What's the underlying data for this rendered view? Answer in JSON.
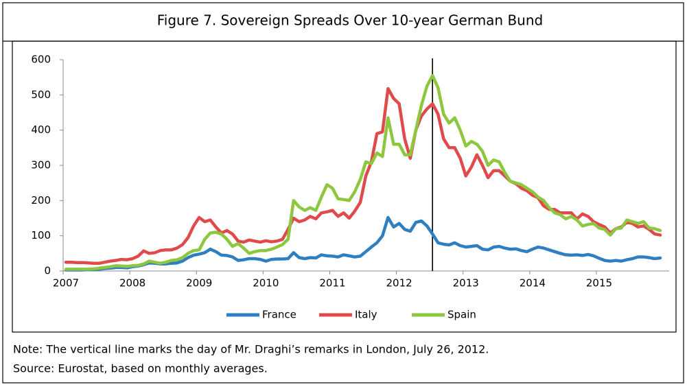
{
  "chart_data": {
    "type": "line",
    "title": "Figure 7. Sovereign Spreads Over 10-year German Bund",
    "categories": [
      "2007",
      null,
      null,
      null,
      null,
      null,
      null,
      null,
      null,
      null,
      null,
      null,
      "2008",
      null,
      null,
      null,
      null,
      null,
      null,
      null,
      null,
      null,
      null,
      null,
      "2009",
      null,
      null,
      null,
      null,
      null,
      null,
      null,
      null,
      null,
      null,
      null,
      "2010",
      null,
      null,
      null,
      null,
      null,
      null,
      null,
      null,
      null,
      null,
      null,
      "2011",
      null,
      null,
      null,
      null,
      null,
      null,
      null,
      null,
      null,
      null,
      null,
      "2012",
      null,
      null,
      null,
      null,
      null,
      null,
      null,
      null,
      null,
      null,
      null,
      "2013",
      null,
      null,
      null,
      null,
      null,
      null,
      null,
      null,
      null,
      null,
      null,
      "2014",
      null,
      null,
      null,
      null,
      null,
      null,
      null,
      null,
      null,
      null,
      null,
      "2015",
      null,
      null,
      null,
      null,
      null,
      null,
      null,
      null,
      null,
      null,
      null
    ],
    "series": [
      {
        "name": "France",
        "color": "#2e7fc1",
        "values": [
          3,
          3,
          3,
          3,
          4,
          4,
          5,
          7,
          8,
          10,
          10,
          9,
          12,
          14,
          18,
          23,
          22,
          20,
          20,
          22,
          23,
          28,
          38,
          45,
          48,
          52,
          62,
          55,
          45,
          44,
          40,
          30,
          32,
          35,
          35,
          33,
          28,
          33,
          34,
          34,
          35,
          52,
          38,
          35,
          38,
          37,
          46,
          43,
          42,
          40,
          46,
          43,
          40,
          42,
          55,
          68,
          80,
          100,
          152,
          125,
          135,
          118,
          113,
          138,
          142,
          128,
          105,
          80,
          76,
          74,
          80,
          72,
          68,
          70,
          72,
          62,
          60,
          68,
          70,
          65,
          62,
          63,
          58,
          55,
          62,
          68,
          65,
          60,
          55,
          50,
          46,
          45,
          46,
          44,
          47,
          43,
          36,
          30,
          28,
          30,
          28,
          32,
          35,
          40,
          40,
          38,
          35,
          37
        ]
      },
      {
        "name": "Italy",
        "color": "#e04a4a",
        "values": [
          25,
          25,
          24,
          24,
          23,
          22,
          22,
          25,
          28,
          30,
          33,
          32,
          35,
          42,
          57,
          50,
          52,
          58,
          60,
          60,
          65,
          75,
          95,
          128,
          152,
          140,
          145,
          125,
          108,
          115,
          105,
          85,
          82,
          88,
          85,
          82,
          86,
          83,
          85,
          90,
          118,
          150,
          140,
          145,
          155,
          148,
          165,
          168,
          172,
          155,
          165,
          150,
          170,
          195,
          270,
          310,
          390,
          395,
          518,
          490,
          475,
          375,
          320,
          400,
          440,
          460,
          475,
          445,
          375,
          350,
          350,
          320,
          270,
          295,
          330,
          300,
          265,
          285,
          285,
          270,
          255,
          248,
          235,
          228,
          215,
          208,
          185,
          175,
          175,
          165,
          165,
          165,
          148,
          162,
          155,
          140,
          132,
          125,
          108,
          120,
          125,
          138,
          135,
          125,
          128,
          118,
          105,
          102
        ]
      },
      {
        "name": "Spain",
        "color": "#8dc63f",
        "values": [
          5,
          5,
          5,
          5,
          5,
          6,
          8,
          10,
          12,
          15,
          14,
          13,
          15,
          16,
          20,
          28,
          25,
          22,
          25,
          30,
          32,
          38,
          50,
          58,
          60,
          90,
          108,
          110,
          105,
          90,
          70,
          78,
          65,
          50,
          55,
          58,
          58,
          62,
          68,
          75,
          90,
          200,
          182,
          172,
          180,
          172,
          210,
          245,
          235,
          205,
          203,
          200,
          225,
          260,
          310,
          305,
          335,
          325,
          435,
          360,
          360,
          330,
          330,
          400,
          470,
          525,
          555,
          520,
          445,
          420,
          435,
          400,
          355,
          368,
          360,
          340,
          300,
          315,
          310,
          280,
          255,
          250,
          245,
          235,
          225,
          210,
          200,
          180,
          165,
          160,
          148,
          155,
          145,
          128,
          132,
          135,
          122,
          118,
          102,
          120,
          122,
          145,
          140,
          135,
          140,
          122,
          120,
          115
        ]
      }
    ],
    "ylim": [
      0,
      600
    ],
    "yticks": [
      0,
      100,
      200,
      300,
      400,
      500,
      600
    ],
    "grid": false,
    "legend": "bottom",
    "vline": 66
  },
  "notes": [
    "Note: The vertical line marks the day of Mr. Draghi’s remarks in London, July 26, 2012.",
    "Source: Eurostat, based on monthly averages."
  ]
}
